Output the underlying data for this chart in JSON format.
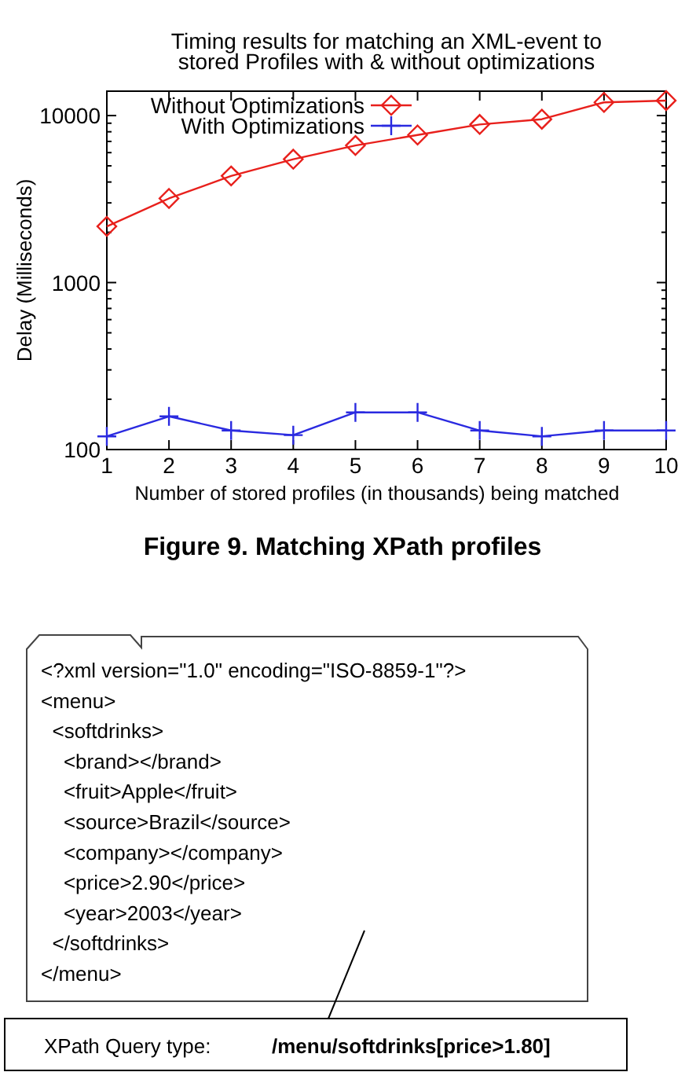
{
  "chart_data": {
    "type": "line",
    "title": "Timing results for matching an XML-event to\nstored Profiles with & without optimizations",
    "xlabel": "Number of stored profiles (in thousands) being matched",
    "ylabel": "Delay  (Milliseconds)",
    "x": [
      1,
      2,
      3,
      4,
      5,
      6,
      7,
      8,
      9,
      10
    ],
    "xlim": [
      1,
      10
    ],
    "xticks": [
      1,
      2,
      3,
      4,
      5,
      6,
      7,
      8,
      9,
      10
    ],
    "ylim": [
      100,
      14000
    ],
    "log": "y",
    "yticks": [
      100,
      {
        "value": 200,
        "label": null
      },
      {
        "value": 300,
        "label": null
      },
      {
        "value": 400,
        "label": null
      },
      {
        "value": 500,
        "label": null
      },
      {
        "value": 600,
        "label": null
      },
      {
        "value": 700,
        "label": null
      },
      {
        "value": 800,
        "label": null
      },
      {
        "value": 900,
        "label": null
      },
      1000,
      {
        "value": 2000,
        "label": null
      },
      {
        "value": 3000,
        "label": null
      },
      {
        "value": 4000,
        "label": null
      },
      {
        "value": 5000,
        "label": null
      },
      {
        "value": 6000,
        "label": null
      },
      {
        "value": 7000,
        "label": null
      },
      {
        "value": 8000,
        "label": null
      },
      {
        "value": 9000,
        "label": null
      },
      10000
    ],
    "grid": false,
    "legend": "top left",
    "series": [
      {
        "name": "Without Optimizations",
        "color": "#e8201c",
        "marker": "diamond",
        "values": [
          2170,
          3190,
          4350,
          5480,
          6620,
          7650,
          8850,
          9510,
          12000,
          12300
        ]
      },
      {
        "name": "With Optimizations",
        "color": "#2a2ae0",
        "marker": "cross",
        "values": [
          120,
          158,
          130,
          122,
          167,
          167,
          130,
          120,
          130,
          130
        ]
      }
    ],
    "annotations": [
      "Figure 9.  Matching XPath profiles",
      "<?xml version=\"1.0\" encoding=\"ISO-8859-1\"?>",
      "<menu>",
      "  <softdrinks>",
      "    <brand></brand>",
      "    <fruit>Apple</fruit>",
      "    <source>Brazil</source>",
      "    <company></company>",
      "    <price>2.90</price>",
      "    <year>2003</year>",
      "  </softdrinks>",
      "</menu>",
      "XPath Query type:",
      "/menu/softdrinks[price>1.80]"
    ]
  }
}
